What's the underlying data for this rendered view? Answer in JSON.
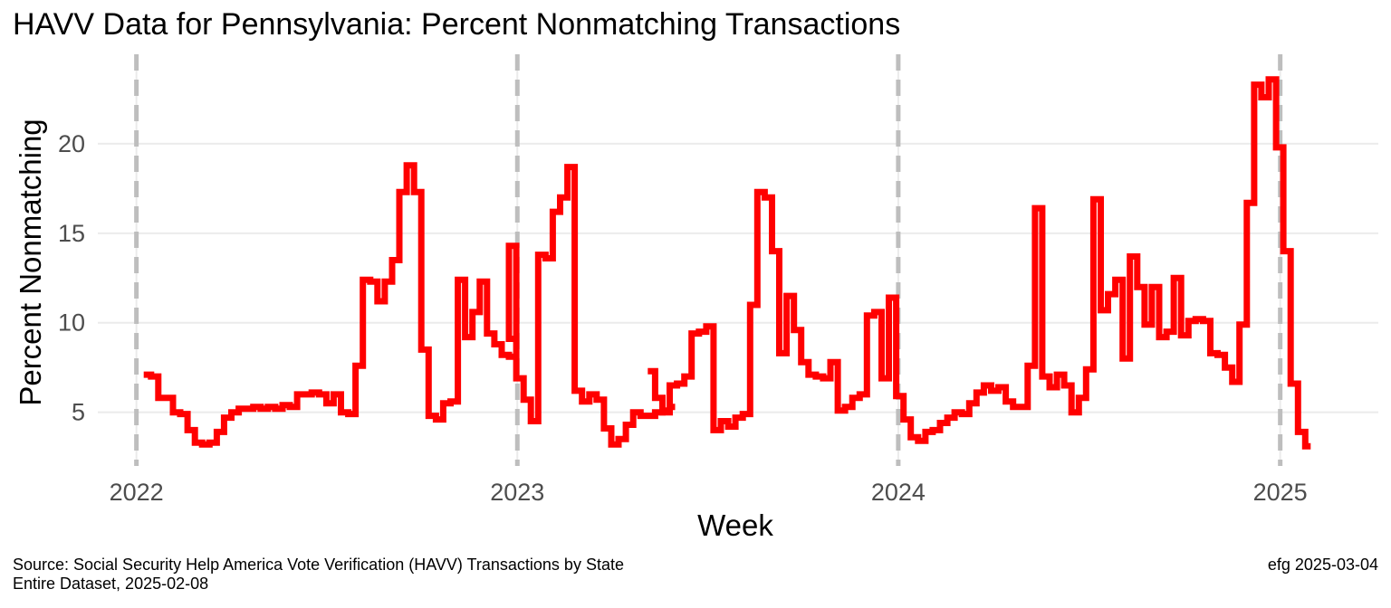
{
  "chart_data": {
    "type": "line",
    "title": "HAVV Data for Pennsylvania:  Percent Nonmatching Transactions",
    "xlabel": "Week",
    "ylabel": "Percent Nonmatching",
    "x_ticks": [
      "2022",
      "2023",
      "2024",
      "2025"
    ],
    "y_ticks": [
      5,
      10,
      15,
      20
    ],
    "ylim": [
      2,
      25
    ],
    "xlim": [
      "2021-11-25",
      "2025-04-05"
    ],
    "grid": "horizontal",
    "year_markers": "dashed vertical lines at each year start",
    "line_style": "step",
    "line_color": "#ff0000",
    "series": [
      {
        "points": [
          [
            "2022-01-08",
            7.1
          ],
          [
            "2022-01-15",
            7.0
          ],
          [
            "2022-01-22",
            5.8
          ],
          [
            "2022-01-29",
            5.8
          ],
          [
            "2022-02-05",
            5.0
          ],
          [
            "2022-02-12",
            4.9
          ],
          [
            "2022-02-19",
            4.0
          ],
          [
            "2022-02-26",
            3.3
          ],
          [
            "2022-03-05",
            3.2
          ],
          [
            "2022-03-12",
            3.3
          ],
          [
            "2022-03-19",
            3.9
          ],
          [
            "2022-03-26",
            4.7
          ],
          [
            "2022-04-02",
            5.0
          ],
          [
            "2022-04-09",
            5.2
          ],
          [
            "2022-04-16",
            5.2
          ],
          [
            "2022-04-23",
            5.3
          ],
          [
            "2022-04-30",
            5.2
          ],
          [
            "2022-05-07",
            5.3
          ],
          [
            "2022-05-14",
            5.2
          ],
          [
            "2022-05-21",
            5.4
          ],
          [
            "2022-05-28",
            5.3
          ],
          [
            "2022-06-04",
            6.0
          ],
          [
            "2022-06-11",
            6.0
          ],
          [
            "2022-06-18",
            6.1
          ],
          [
            "2022-06-25",
            6.0
          ],
          [
            "2022-07-02",
            5.5
          ],
          [
            "2022-07-09",
            6.0
          ],
          [
            "2022-07-16",
            5.0
          ],
          [
            "2022-07-23",
            4.9
          ],
          [
            "2022-07-30",
            7.6
          ],
          [
            "2022-08-06",
            12.4
          ],
          [
            "2022-08-13",
            12.3
          ],
          [
            "2022-08-20",
            11.2
          ],
          [
            "2022-08-27",
            12.3
          ],
          [
            "2022-09-03",
            13.5
          ],
          [
            "2022-09-10",
            17.3
          ],
          [
            "2022-09-17",
            18.8
          ],
          [
            "2022-09-24",
            17.3
          ],
          [
            "2022-10-01",
            8.5
          ],
          [
            "2022-10-08",
            4.8
          ],
          [
            "2022-10-15",
            4.6
          ],
          [
            "2022-10-22",
            5.5
          ],
          [
            "2022-10-29",
            5.6
          ],
          [
            "2022-11-05",
            12.4
          ],
          [
            "2022-11-12",
            9.2
          ],
          [
            "2022-11-19",
            10.6
          ],
          [
            "2022-11-26",
            12.3
          ],
          [
            "2022-12-03",
            9.4
          ],
          [
            "2022-12-10",
            8.8
          ],
          [
            "2022-12-17",
            8.2
          ],
          [
            "2022-12-24",
            8.1
          ],
          [
            "2022-12-31",
            14.3
          ],
          [
            "2022-12-24",
            9.1
          ],
          [
            "2022-12-31",
            6.9
          ],
          [
            "2023-01-07",
            5.7
          ],
          [
            "2023-01-14",
            4.5
          ],
          [
            "2023-01-21",
            13.8
          ],
          [
            "2023-01-28",
            13.6
          ],
          [
            "2023-02-04",
            16.2
          ],
          [
            "2023-02-11",
            17.0
          ],
          [
            "2023-02-18",
            18.7
          ],
          [
            "2023-02-25",
            6.2
          ],
          [
            "2023-03-04",
            5.6
          ],
          [
            "2023-03-11",
            6.0
          ],
          [
            "2023-03-18",
            5.7
          ],
          [
            "2023-03-25",
            4.1
          ],
          [
            "2023-04-01",
            3.2
          ],
          [
            "2023-04-08",
            3.5
          ],
          [
            "2023-04-15",
            4.3
          ],
          [
            "2023-04-22",
            5.0
          ],
          [
            "2023-04-29",
            4.8
          ],
          [
            "2023-05-06",
            4.8
          ],
          [
            "2023-05-13",
            5.0
          ],
          [
            "2023-05-20",
            5.1
          ],
          [
            "2023-05-27",
            5.3
          ]
        ]
      }
    ],
    "series_raw_note": "",
    "series_b": [
      [
        "2023-01-02",
        7.3
      ],
      [
        "2023-01-09",
        5.8
      ],
      [
        "2023-01-16",
        5.0
      ],
      [
        "2023-01-23",
        6.5
      ],
      [
        "2023-01-30",
        6.6
      ],
      [
        "2023-02-06",
        7.0
      ],
      [
        "2023-02-13",
        9.4
      ],
      [
        "2023-02-20",
        9.5
      ],
      [
        "2023-02-27",
        9.8
      ],
      [
        "2023-03-06",
        4.0
      ],
      [
        "2023-03-13",
        4.5
      ],
      [
        "2023-03-20",
        4.2
      ],
      [
        "2023-03-27",
        4.7
      ],
      [
        "2023-04-03",
        4.9
      ],
      [
        "2023-04-10",
        11.0
      ],
      [
        "2023-04-17",
        17.3
      ],
      [
        "2023-04-24",
        17.0
      ],
      [
        "2023-05-01",
        14.0
      ],
      [
        "2023-05-08",
        8.3
      ],
      [
        "2023-05-15",
        11.5
      ],
      [
        "2023-05-22",
        9.6
      ],
      [
        "2023-05-29",
        7.8
      ],
      [
        "2023-06-05",
        7.1
      ],
      [
        "2023-06-12",
        7.0
      ],
      [
        "2023-06-19",
        6.9
      ],
      [
        "2023-06-26",
        7.8
      ],
      [
        "2023-07-03",
        5.1
      ],
      [
        "2023-07-10",
        5.3
      ],
      [
        "2023-07-17",
        5.8
      ],
      [
        "2023-07-24",
        6.0
      ],
      [
        "2023-07-31",
        10.4
      ],
      [
        "2023-08-07",
        10.6
      ],
      [
        "2023-08-14",
        6.9
      ],
      [
        "2023-08-21",
        11.4
      ],
      [
        "2023-08-28",
        5.9
      ],
      [
        "2023-09-04",
        4.6
      ],
      [
        "2023-09-11",
        3.6
      ],
      [
        "2023-09-18",
        3.4
      ],
      [
        "2023-09-25",
        3.9
      ],
      [
        "2023-10-02",
        4.0
      ],
      [
        "2023-10-09",
        4.4
      ],
      [
        "2023-10-16",
        4.7
      ],
      [
        "2023-10-23",
        5.0
      ],
      [
        "2023-10-30",
        4.9
      ],
      [
        "2023-11-06",
        5.5
      ],
      [
        "2023-11-13",
        6.1
      ],
      [
        "2023-11-20",
        6.5
      ],
      [
        "2023-11-27",
        6.2
      ],
      [
        "2023-12-04",
        6.4
      ],
      [
        "2023-12-11",
        5.6
      ],
      [
        "2023-12-18",
        5.3
      ],
      [
        "2023-12-25",
        5.3
      ],
      [
        "2024-01-01",
        7.6
      ],
      [
        "2024-01-08",
        16.4
      ],
      [
        "2024-01-15",
        7.0
      ],
      [
        "2024-01-22",
        6.4
      ],
      [
        "2024-01-29",
        7.1
      ],
      [
        "2024-02-05",
        6.5
      ],
      [
        "2024-02-12",
        5.0
      ],
      [
        "2024-02-19",
        5.8
      ],
      [
        "2024-02-26",
        7.4
      ],
      [
        "2024-03-04",
        16.9
      ],
      [
        "2024-03-11",
        10.7
      ],
      [
        "2024-03-18",
        11.6
      ],
      [
        "2024-03-25",
        12.4
      ],
      [
        "2024-04-01",
        8.0
      ],
      [
        "2024-04-08",
        13.7
      ],
      [
        "2024-04-15",
        12.0
      ],
      [
        "2024-04-22",
        9.9
      ],
      [
        "2024-04-29",
        12.0
      ],
      [
        "2024-05-06",
        9.2
      ],
      [
        "2024-05-13",
        9.5
      ],
      [
        "2024-05-20",
        12.5
      ],
      [
        "2024-05-27",
        9.3
      ],
      [
        "2024-06-03",
        10.1
      ],
      [
        "2024-06-10",
        10.2
      ],
      [
        "2024-06-17",
        10.1
      ],
      [
        "2024-06-24",
        8.3
      ],
      [
        "2024-07-01",
        8.2
      ],
      [
        "2024-07-08",
        7.5
      ],
      [
        "2024-07-15",
        6.7
      ],
      [
        "2024-07-22",
        9.9
      ],
      [
        "2024-07-29",
        16.7
      ],
      [
        "2024-08-05",
        23.3
      ],
      [
        "2024-08-12",
        22.6
      ],
      [
        "2024-08-19",
        23.6
      ],
      [
        "2024-08-26",
        19.8
      ],
      [
        "2024-09-02",
        14.0
      ],
      [
        "2024-09-09",
        6.6
      ],
      [
        "2024-09-16",
        3.9
      ],
      [
        "2024-09-23",
        3.1
      ]
    ]
  },
  "caption": {
    "source_line1": "Source:  Social Security Help America Vote Verification (HAVV) Transactions by State",
    "source_line2": "Entire Dataset, 2025-02-08",
    "signature": "efg 2025-03-04"
  }
}
